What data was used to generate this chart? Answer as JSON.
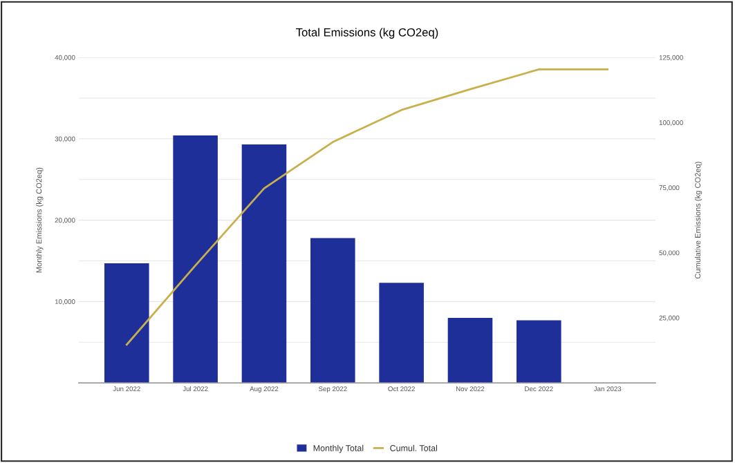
{
  "chart_data": {
    "type": "bar",
    "title": "Total Emissions (kg CO2eq)",
    "ylabel": "Monthly Emissions (kg CO2eq)",
    "y2label": "Cumulative Emissions (kg CO2eq)",
    "categories": [
      "Jun 2022",
      "Jul 2022",
      "Aug 2022",
      "Sep 2022",
      "Oct 2022",
      "Nov 2022",
      "Dec 2022",
      "Jan 2023"
    ],
    "series": [
      {
        "name": "Monthly Total",
        "color": "#1f2f9a",
        "values": [
          14700,
          30400,
          29300,
          17800,
          12300,
          8000,
          7700,
          null
        ]
      },
      {
        "name": "Cumul. Total",
        "type": "line",
        "axis": "y2",
        "color": "#c8b04c",
        "values": [
          14700,
          45100,
          74700,
          92500,
          104800,
          112800,
          120400,
          120400
        ]
      }
    ],
    "ylim": [
      0,
      40000
    ],
    "yticks": [
      {
        "value": 5000,
        "label": null
      },
      {
        "value": 10000,
        "label": "10,000"
      },
      {
        "value": 15000,
        "label": null
      },
      {
        "value": 20000,
        "label": "20,000"
      },
      {
        "value": 25000,
        "label": null
      },
      {
        "value": 30000,
        "label": "30,000"
      },
      {
        "value": 35000,
        "label": null
      },
      {
        "value": 40000,
        "label": "40,000"
      }
    ],
    "y2lim": [
      0,
      125000
    ],
    "y2ticks": [
      {
        "value": 25000,
        "label": "25,000"
      },
      {
        "value": 50000,
        "label": "50,000"
      },
      {
        "value": 75000,
        "label": "75,000"
      },
      {
        "value": 100000,
        "label": "100,000"
      },
      {
        "value": 125000,
        "label": "125,000"
      }
    ],
    "grid": "y",
    "legend": "bottom"
  }
}
